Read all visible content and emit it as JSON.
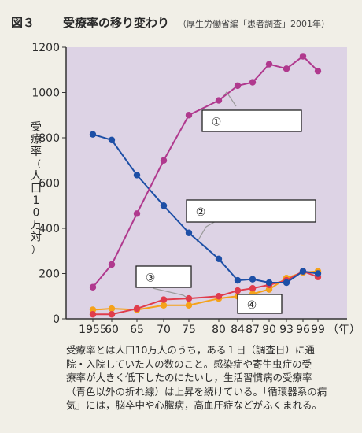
{
  "figure": {
    "number": "図３",
    "title": "受療率の移り変わり",
    "source": "（厚生労働省編「患者調査」2001年）"
  },
  "caption": [
    "受療率とは人口10万人のうち，ある１日（調査日）に通",
    "院・入院していた人の数のこと。感染症や寄生虫症の受",
    "療率が大きく低下したのにたいし，生活習慣病の受療率",
    "（青色以外の折れ線）は上昇を続けている。「循環器系の病",
    "気」には，脳卒中や心臓病，高血圧症などがふくまれる。"
  ],
  "colors": {
    "background": "#f1efe7",
    "plot_area": "#ddd3e5",
    "purple": "#b0398e",
    "blue": "#1d4fa6",
    "red": "#e03c4c",
    "orange": "#f5a21a",
    "pointer": "#9a9a9a"
  },
  "chart_data": {
    "type": "line",
    "ylabel": "受療率（人口10万対）",
    "xlabel_unit": "（年）",
    "ylim": [
      0,
      1200
    ],
    "yticks": [
      0,
      200,
      400,
      600,
      800,
      1000,
      1200
    ],
    "grid": false,
    "x": [
      "1955",
      "60",
      "65",
      "70",
      "75",
      "80",
      "84",
      "87",
      "90",
      "93",
      "96",
      "99"
    ],
    "series": [
      {
        "name": "①",
        "color": "purple",
        "values": [
          140,
          240,
          465,
          700,
          900,
          965,
          1030,
          1045,
          1125,
          1105,
          1160,
          1095
        ]
      },
      {
        "name": "②",
        "color": "blue",
        "values": [
          815,
          790,
          635,
          500,
          380,
          265,
          170,
          175,
          160,
          160,
          210,
          200
        ]
      },
      {
        "name": "③",
        "color": "red",
        "values": [
          20,
          20,
          45,
          85,
          90,
          100,
          125,
          135,
          150,
          170,
          210,
          185
        ]
      },
      {
        "name": "④",
        "color": "orange",
        "values": [
          40,
          45,
          40,
          60,
          60,
          90,
          100,
          110,
          130,
          180,
          205,
          210
        ]
      }
    ],
    "annotations": [
      {
        "label": "①",
        "text": ""
      },
      {
        "label": "②",
        "text": ""
      },
      {
        "label": "③",
        "text": ""
      },
      {
        "label": "④",
        "text": ""
      }
    ]
  }
}
